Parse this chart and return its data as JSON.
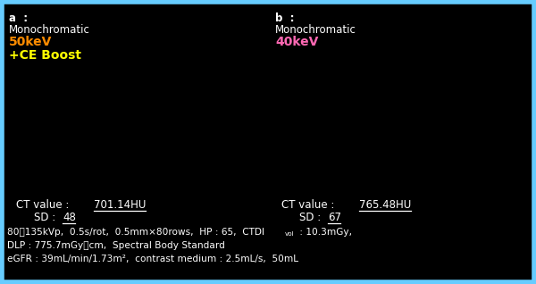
{
  "bg_color": "#000000",
  "border_color": "#66ccff",
  "border_lw": 4,
  "panel_a_label": "a  :",
  "panel_b_label": "b  :",
  "label_color": "#ffffff",
  "mono_text": "Monochromatic",
  "panel_a_kev": "50keV",
  "panel_a_kev_color": "#ff8c00",
  "panel_a_boost": "+CE Boost",
  "panel_a_boost_color": "#ffff00",
  "panel_b_kev": "40keV",
  "panel_b_kev_color": "#ff69b4",
  "panel_a_ct_value": "701.14HU",
  "panel_b_ct_value": "765.48HU",
  "panel_a_sd": "48",
  "panel_b_sd": "67",
  "ct_sd_color": "#ffffff",
  "info_color": "#ffffff",
  "fs_label": 8.5,
  "fs_kev": 10.0,
  "fs_info": 7.6
}
